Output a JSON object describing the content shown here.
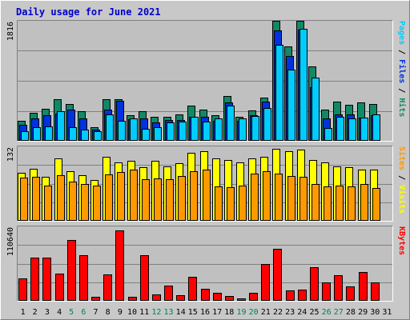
{
  "chart_data": {
    "type": "bar",
    "title": "Daily usage for June 2021",
    "categories": [
      "1",
      "2",
      "3",
      "4",
      "5",
      "6",
      "7",
      "8",
      "9",
      "10",
      "11",
      "12",
      "13",
      "14",
      "15",
      "16",
      "17",
      "18",
      "19",
      "20",
      "21",
      "22",
      "23",
      "24",
      "25",
      "26",
      "27",
      "28",
      "29",
      "30",
      "31"
    ],
    "weekend_days": [
      "5",
      "6",
      "12",
      "13",
      "19",
      "20",
      "26",
      "27"
    ],
    "panels": [
      {
        "id": "top",
        "ymax_label": "1816",
        "ymax": 1816,
        "right_label_parts": [
          {
            "text": "Pages",
            "color": "#00ccff"
          },
          {
            "text": " / ",
            "color": "#000000"
          },
          {
            "text": "Files",
            "color": "#0033dd"
          },
          {
            "text": " / ",
            "color": "#000000"
          },
          {
            "text": "Hits",
            "color": "#118866"
          }
        ],
        "series": [
          {
            "name": "Hits",
            "color": "#118866",
            "values": [
              295,
              420,
              470,
              620,
              550,
              440,
              190,
              620,
              620,
              375,
              435,
              350,
              355,
              385,
              520,
              460,
              375,
              665,
              350,
              445,
              650,
              1816,
              1430,
              1816,
              1120,
              460,
              585,
              535,
              575,
              545,
              0
            ]
          },
          {
            "name": "Files",
            "color": "#0033dd",
            "values": [
              230,
              330,
              375,
              400,
              460,
              330,
              160,
              460,
              600,
              320,
              330,
              265,
              310,
              300,
              350,
              355,
              290,
              570,
              290,
              375,
              580,
              1665,
              1280,
              1680,
              810,
              330,
              385,
              390,
              345,
              380,
              0
            ]
          },
          {
            "name": "Pages",
            "color": "#00ccff",
            "values": [
              140,
              200,
              210,
              440,
              195,
              160,
              135,
              390,
              290,
              330,
              170,
              195,
              265,
              280,
              350,
              280,
              325,
              530,
              325,
              370,
              490,
              1445,
              1075,
              1700,
              950,
              180,
              350,
              330,
              340,
              390,
              0
            ]
          }
        ]
      },
      {
        "id": "mid",
        "ymax_label": "132",
        "ymax": 132,
        "right_label_parts": [
          {
            "text": "Sites",
            "color": "#ff9900"
          },
          {
            "text": " / ",
            "color": "#000000"
          },
          {
            "text": "Visits",
            "color": "#ffff00"
          }
        ],
        "series": [
          {
            "name": "Visits",
            "color": "#ffff00",
            "values": [
              84,
              92,
              77,
              110,
              87,
              80,
              72,
              113,
              104,
              106,
              95,
              106,
              96,
              102,
              121,
              123,
              111,
              108,
              104,
              111,
              114,
              128,
              124,
              126,
              107,
              104,
              96,
              94,
              90,
              90,
              0
            ]
          },
          {
            "name": "Sites",
            "color": "#ff9900",
            "values": [
              76,
              78,
              61,
              81,
              69,
              65,
              62,
              82,
              86,
              90,
              73,
              74,
              73,
              79,
              87,
              90,
              60,
              59,
              62,
              83,
              87,
              83,
              79,
              77,
              65,
              60,
              62,
              60,
              65,
              58,
              0
            ]
          }
        ]
      },
      {
        "id": "bot",
        "ymax_label": "110640",
        "ymax": 110640,
        "right_label_parts": [
          {
            "text": "KBytes",
            "color": "#ff0000"
          }
        ],
        "series": [
          {
            "name": "KBytes",
            "color": "#ff0000",
            "values": [
              32000,
              64000,
              64000,
              40000,
              90000,
              67000,
              5000,
              39000,
              105000,
              5000,
              67000,
              9000,
              22000,
              7000,
              35000,
              17000,
              11000,
              6000,
              2000,
              11000,
              54000,
              77000,
              15000,
              16000,
              49000,
              26000,
              37000,
              20000,
              42000,
              27000,
              0
            ]
          }
        ]
      }
    ],
    "colors": {
      "background": "#ffffff",
      "frame": "#c8c8c8",
      "plot": "#c0c0c0",
      "gridline": "#808080",
      "title": "#0000cc",
      "weekday_label": "#000000",
      "weekend_label": "#00805c"
    }
  }
}
